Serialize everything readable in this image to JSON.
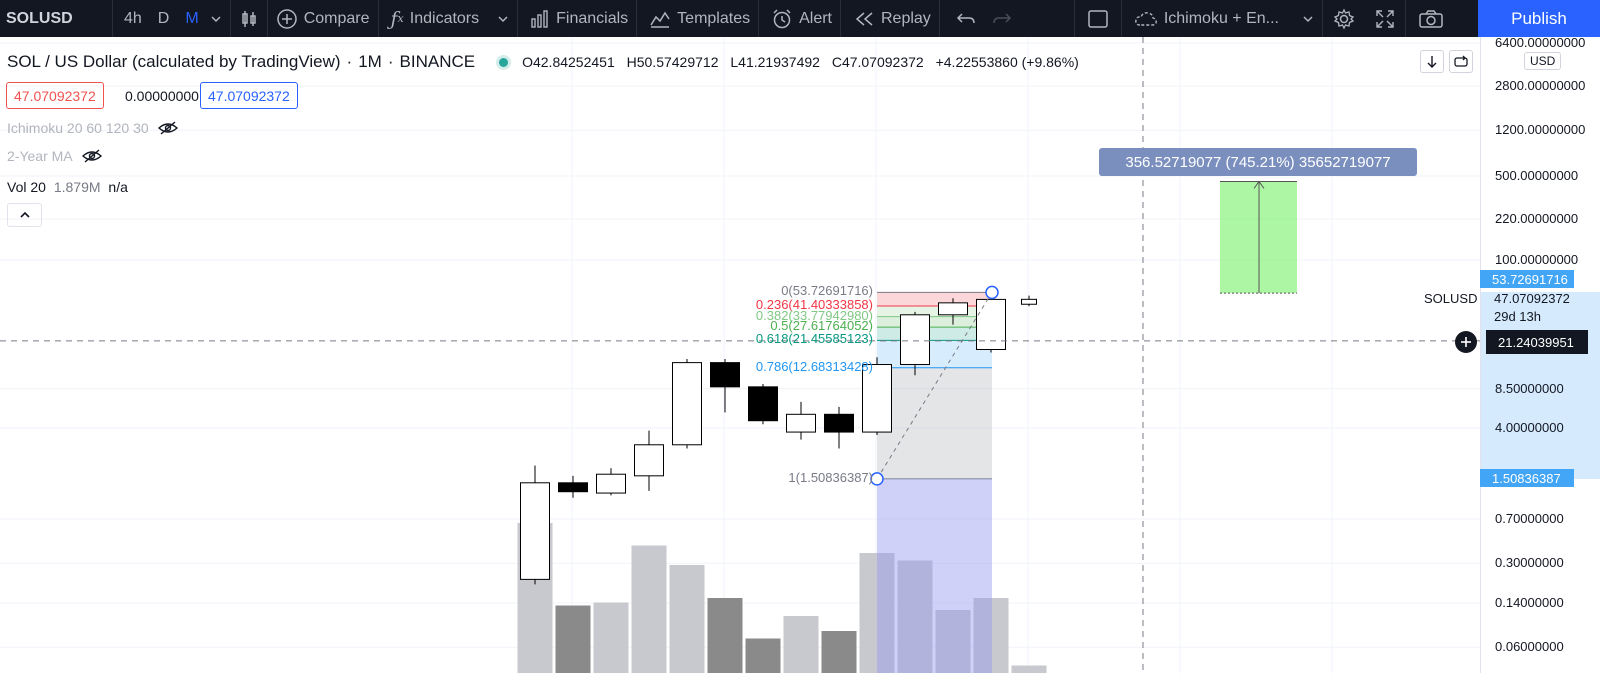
{
  "toolbar": {
    "symbol": "SOLUSD",
    "intervals": [
      {
        "label": "4h",
        "active": false
      },
      {
        "label": "D",
        "active": false
      },
      {
        "label": "M",
        "active": true
      }
    ],
    "compare": "Compare",
    "indicators": "Indicators",
    "financials": "Financials",
    "templates": "Templates",
    "alert": "Alert",
    "replay": "Replay",
    "layout_name": "Ichimoku + En...",
    "publish": "Publish"
  },
  "legend": {
    "title": "SOL / US Dollar (calculated by TradingView)",
    "interval": "1M",
    "exchange": "BINANCE",
    "open": "O42.84252451",
    "high": "H50.57429712",
    "low": "L41.21937492",
    "close": "C47.07092372",
    "change": "+4.22553860 (+9.86%)",
    "chip_sell": "47.07092372",
    "chip_spread": "0.00000000",
    "chip_buy": "47.07092372"
  },
  "indicators": {
    "ichimoku": "Ichimoku 20 60 120 30",
    "ma": "2-Year MA",
    "vol_name": "Vol 20",
    "vol_value": "1.879M",
    "vol_na": "n/a"
  },
  "price_scale": {
    "currency": "USD",
    "labels": [
      {
        "text": "6400.00000000",
        "y": 6400
      },
      {
        "text": "2800.00000000",
        "y": 2800
      },
      {
        "text": "1200.00000000",
        "y": 1200
      },
      {
        "text": "500.00000000",
        "y": 500
      },
      {
        "text": "220.00000000",
        "y": 220
      },
      {
        "text": "100.00000000",
        "y": 100
      },
      {
        "text": "8.50000000",
        "y": 8.5
      },
      {
        "text": "4.00000000",
        "y": 4
      },
      {
        "text": "0.70000000",
        "y": 0.7
      },
      {
        "text": "0.30000000",
        "y": 0.3
      },
      {
        "text": "0.14000000",
        "y": 0.14
      },
      {
        "text": "0.06000000",
        "y": 0.06
      }
    ],
    "fib_top_tag": "53.72691716",
    "fib_bottom_tag": "1.50836387",
    "crosshair_tag": "21.24039951",
    "symbol_label": "SOLUSD",
    "current_price": "47.07092372",
    "countdown": "29d 13h"
  },
  "measure_label": "356.52719077 (745.21%) 35652719077",
  "fib_levels": [
    {
      "label": "0(53.72691716)",
      "color": "#787b86"
    },
    {
      "label": "0.236(41.40333858)",
      "color": "#f23645"
    },
    {
      "label": "0.382(33.77942980)",
      "color": "#81c784"
    },
    {
      "label": "0.5(27.61764052)",
      "color": "#4caf50"
    },
    {
      "label": "0.618(21.45585123)",
      "color": "#089981"
    },
    {
      "label": "0.786(12.68313428)",
      "color": "#2196f3"
    },
    {
      "label": "1(1.50836387)",
      "color": "#787b86"
    }
  ],
  "chart_data": {
    "type": "candlestick",
    "symbol": "SOL / US Dollar (calculated by TradingView)",
    "interval": "1M",
    "scale": "log",
    "candles": [
      {
        "o": 0.22,
        "h": 1.95,
        "l": 0.2,
        "c": 1.4
      },
      {
        "o": 1.4,
        "h": 1.6,
        "l": 1.05,
        "c": 1.18
      },
      {
        "o": 1.15,
        "h": 1.85,
        "l": 1.1,
        "c": 1.65
      },
      {
        "o": 1.6,
        "h": 3.8,
        "l": 1.2,
        "c": 2.9
      },
      {
        "o": 2.9,
        "h": 15.0,
        "l": 2.7,
        "c": 14.0
      },
      {
        "o": 14.0,
        "h": 15.0,
        "l": 5.4,
        "c": 8.8
      },
      {
        "o": 8.8,
        "h": 9.3,
        "l": 4.3,
        "c": 4.6
      },
      {
        "o": 3.7,
        "h": 6.6,
        "l": 3.2,
        "c": 5.2
      },
      {
        "o": 5.2,
        "h": 6.0,
        "l": 2.7,
        "c": 3.7
      },
      {
        "o": 3.7,
        "h": 15.5,
        "l": 3.5,
        "c": 13.5
      },
      {
        "o": 13.5,
        "h": 37.0,
        "l": 11.0,
        "c": 35.0
      },
      {
        "o": 35.0,
        "h": 48.0,
        "l": 29.0,
        "c": 44.0
      },
      {
        "o": 18.0,
        "h": 55.0,
        "l": 17.0,
        "c": 47.0
      },
      {
        "o": 42.84252451,
        "h": 50.57429712,
        "l": 41.21937492,
        "c": 47.07092372
      }
    ],
    "volume_relative": [
      1.0,
      0.45,
      0.47,
      0.85,
      0.72,
      0.5,
      0.23,
      0.38,
      0.28,
      0.8,
      0.75,
      0.42,
      0.5,
      0.05
    ]
  }
}
